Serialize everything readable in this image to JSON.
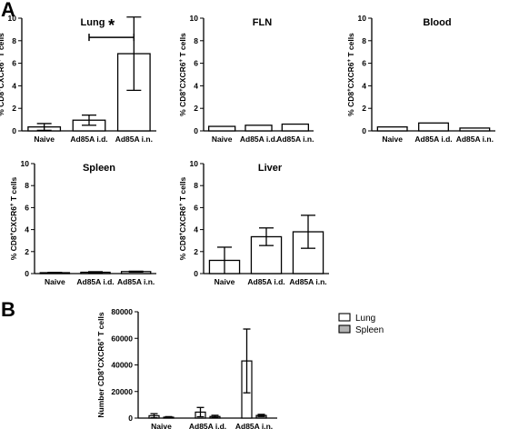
{
  "figure": {
    "panel_letters": [
      "A",
      "B"
    ]
  },
  "colors": {
    "bar_fill": "#ffffff",
    "spleen_fill": "#b3b3b3",
    "stroke": "#000000"
  },
  "chart_data": [
    {
      "panel": "A",
      "type": "bar",
      "title": "Lung",
      "ylabel": "% CD8⁺CXCR6⁺ T cells",
      "categories": [
        "Naive",
        "Ad85A i.d.",
        "Ad85A i.n."
      ],
      "values": [
        0.35,
        0.95,
        6.85
      ],
      "errors": [
        0.3,
        0.45,
        3.25
      ],
      "ylim": [
        0,
        10
      ],
      "yticks": [
        "0",
        "2",
        "4",
        "6",
        "8",
        "10"
      ],
      "annotation": {
        "text": "*",
        "between": [
          "Ad85A i.d.",
          "Ad85A i.n."
        ]
      }
    },
    {
      "panel": "A",
      "type": "bar",
      "title": "FLN",
      "ylabel": "% CD8⁺CXCR6⁺ T cells",
      "categories": [
        "Naive",
        "Ad85A i.d.",
        "Ad85A i.n."
      ],
      "values": [
        0.4,
        0.5,
        0.6
      ],
      "errors": [
        0,
        0,
        0
      ],
      "ylim": [
        0,
        10
      ],
      "yticks": [
        "0",
        "2",
        "4",
        "6",
        "8",
        "10"
      ]
    },
    {
      "panel": "A",
      "type": "bar",
      "title": "Blood",
      "ylabel": "% CD8⁺CXCR6⁺ T cells",
      "categories": [
        "Naive",
        "Ad85A i.d.",
        "Ad85A i.n."
      ],
      "values": [
        0.35,
        0.7,
        0.25
      ],
      "errors": [
        0,
        0,
        0
      ],
      "ylim": [
        0,
        10
      ],
      "yticks": [
        "0",
        "2",
        "4",
        "6",
        "8",
        "10"
      ]
    },
    {
      "panel": "A",
      "type": "bar",
      "title": "Spleen",
      "ylabel": "% CD8⁺CXCR6⁺ T cells",
      "categories": [
        "Naive",
        "Ad85A i.d.",
        "Ad85A i.n."
      ],
      "values": [
        0.08,
        0.12,
        0.18
      ],
      "errors": [
        0.03,
        0.05,
        0.04
      ],
      "ylim": [
        0,
        10
      ],
      "yticks": [
        "0",
        "2",
        "4",
        "6",
        "8",
        "10"
      ]
    },
    {
      "panel": "A",
      "type": "bar",
      "title": "Liver",
      "ylabel": "% CD8⁺CXCR6⁺ T cells",
      "categories": [
        "Naive",
        "Ad85A i.d.",
        "Ad85A i.n."
      ],
      "values": [
        1.2,
        3.35,
        3.8
      ],
      "errors": [
        1.2,
        0.8,
        1.5
      ],
      "ylim": [
        0,
        10
      ],
      "yticks": [
        "0",
        "2",
        "4",
        "6",
        "8",
        "10"
      ]
    },
    {
      "panel": "B",
      "type": "bar",
      "title": "",
      "ylabel": "Number CD8⁺CXCR6⁺ T cells",
      "categories": [
        "Naive",
        "Ad85A i.d.",
        "Ad85A i.n."
      ],
      "series": [
        {
          "name": "Lung",
          "values": [
            1800,
            4500,
            43000
          ],
          "errors": [
            1500,
            3500,
            24000
          ]
        },
        {
          "name": "Spleen",
          "values": [
            700,
            1200,
            2000
          ],
          "errors": [
            400,
            900,
            800
          ]
        }
      ],
      "ylim": [
        0,
        80000
      ],
      "yticks": [
        "0",
        "20000",
        "40000",
        "60000",
        "80000"
      ],
      "legend": "top-right"
    }
  ]
}
